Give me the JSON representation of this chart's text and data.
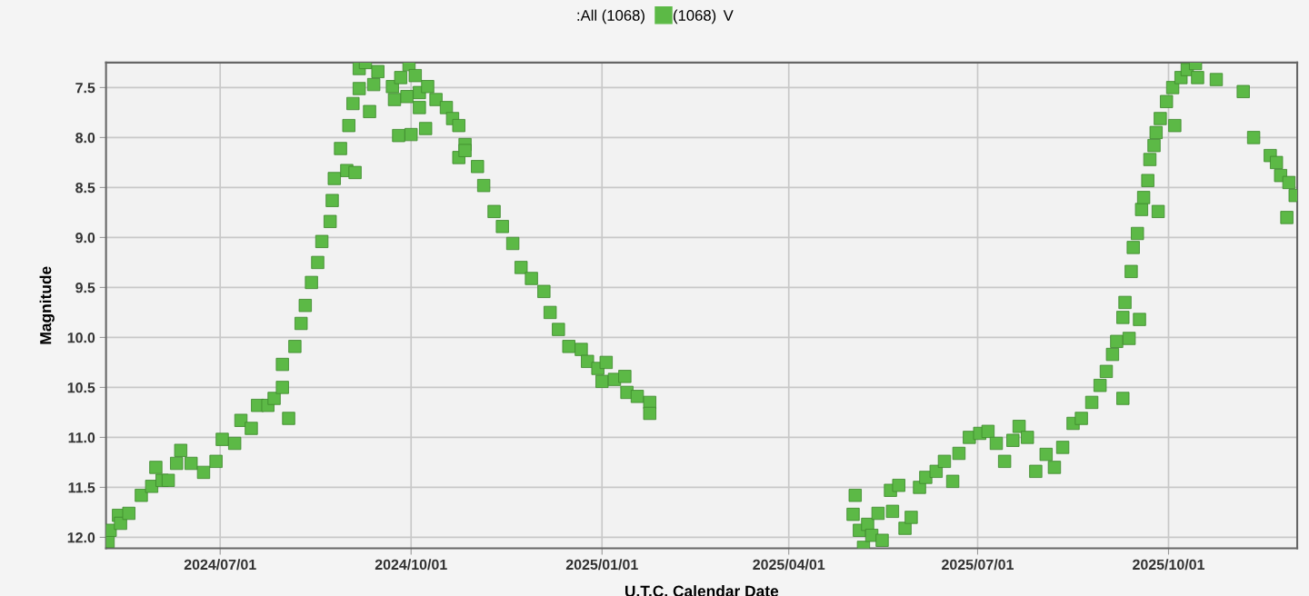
{
  "chart_data": {
    "type": "scatter",
    "xlabel": "U.T.C. Calendar Date",
    "ylabel": "Magnitude",
    "legend_title": ":All (1068)",
    "annotations": [
      "V"
    ],
    "legend": "top",
    "grid": true,
    "marker": "square",
    "xlim": [
      "2024-05-07",
      "2025-12-02"
    ],
    "xticks": [
      {
        "value": "2024-07-01",
        "label": "2024/07/01"
      },
      {
        "value": "2024-10-01",
        "label": "2024/10/01"
      },
      {
        "value": "2025-01-01",
        "label": "2025/01/01"
      },
      {
        "value": "2025-04-01",
        "label": "2025/04/01"
      },
      {
        "value": "2025-07-01",
        "label": "2025/07/01"
      },
      {
        "value": "2025-10-01",
        "label": "2025/10/01"
      }
    ],
    "ylim": [
      12.11,
      7.25
    ],
    "yticks": [
      {
        "value": 7.5,
        "label": "7.5"
      },
      {
        "value": 8.0,
        "label": "8.0"
      },
      {
        "value": 8.5,
        "label": "8.5"
      },
      {
        "value": 9.0,
        "label": "9.0"
      },
      {
        "value": 9.5,
        "label": "9.5"
      },
      {
        "value": 10.0,
        "label": "10.0"
      },
      {
        "value": 10.5,
        "label": "10.5"
      },
      {
        "value": 11.0,
        "label": "11.0"
      },
      {
        "value": 11.5,
        "label": "11.5"
      },
      {
        "value": 12.0,
        "label": "12.0"
      }
    ],
    "series": [
      {
        "name": "(1068)",
        "color": "#5cb946",
        "x": [
          "2024-05-08",
          "2024-05-09",
          "2024-05-13",
          "2024-05-14",
          "2024-05-18",
          "2024-05-24",
          "2024-05-29",
          "2024-05-31",
          "2024-06-03",
          "2024-06-06",
          "2024-06-10",
          "2024-06-12",
          "2024-06-17",
          "2024-06-23",
          "2024-06-29",
          "2024-07-02",
          "2024-07-08",
          "2024-07-11",
          "2024-07-16",
          "2024-07-19",
          "2024-07-24",
          "2024-07-27",
          "2024-07-31",
          "2024-08-03",
          "2024-07-31",
          "2024-08-06",
          "2024-08-09",
          "2024-08-11",
          "2024-08-14",
          "2024-08-17",
          "2024-08-19",
          "2024-08-23",
          "2024-08-24",
          "2024-08-25",
          "2024-08-28",
          "2024-08-31",
          "2024-09-04",
          "2024-09-01",
          "2024-09-03",
          "2024-09-06",
          "2024-09-06",
          "2024-09-09",
          "2024-09-11",
          "2024-09-13",
          "2024-09-15",
          "2024-09-22",
          "2024-09-23",
          "2024-09-25",
          "2024-09-26",
          "2024-09-29",
          "2024-09-30",
          "2024-10-01",
          "2024-10-03",
          "2024-10-05",
          "2024-10-05",
          "2024-10-08",
          "2024-10-09",
          "2024-10-13",
          "2024-10-18",
          "2024-10-21",
          "2024-10-24",
          "2024-10-24",
          "2024-10-27",
          "2024-10-27",
          "2024-11-02",
          "2024-11-05",
          "2024-11-10",
          "2024-11-14",
          "2024-11-19",
          "2024-11-23",
          "2024-11-28",
          "2024-12-04",
          "2024-12-07",
          "2024-12-11",
          "2024-12-16",
          "2024-12-22",
          "2024-12-25",
          "2024-12-30",
          "2025-01-01",
          "2025-01-03",
          "2025-01-07",
          "2025-01-12",
          "2025-01-13",
          "2025-01-18",
          "2025-01-24",
          "2025-01-24",
          "2025-05-03",
          "2025-05-02",
          "2025-05-05",
          "2025-05-07",
          "2025-05-09",
          "2025-05-11",
          "2025-05-14",
          "2025-05-16",
          "2025-05-20",
          "2025-05-21",
          "2025-05-24",
          "2025-05-27",
          "2025-05-30",
          "2025-06-03",
          "2025-06-06",
          "2025-06-11",
          "2025-06-15",
          "2025-06-19",
          "2025-06-22",
          "2025-06-27",
          "2025-07-02",
          "2025-07-06",
          "2025-07-10",
          "2025-07-14",
          "2025-07-18",
          "2025-07-21",
          "2025-07-25",
          "2025-07-29",
          "2025-08-03",
          "2025-08-07",
          "2025-08-11",
          "2025-08-16",
          "2025-08-20",
          "2025-08-25",
          "2025-08-29",
          "2025-09-01",
          "2025-09-04",
          "2025-09-06",
          "2025-09-09",
          "2025-09-09",
          "2025-09-12",
          "2025-09-10",
          "2025-09-13",
          "2025-09-14",
          "2025-09-16",
          "2025-09-17",
          "2025-09-18",
          "2025-09-19",
          "2025-09-21",
          "2025-09-22",
          "2025-09-24",
          "2025-09-25",
          "2025-09-26",
          "2025-09-27",
          "2025-09-30",
          "2025-10-03",
          "2025-10-04",
          "2025-10-07",
          "2025-10-10",
          "2025-10-14",
          "2025-10-15",
          "2025-10-24",
          "2025-11-06",
          "2025-11-11",
          "2025-11-19",
          "2025-11-22",
          "2025-11-24",
          "2025-11-28",
          "2025-11-27",
          "2025-12-01"
        ],
        "values": [
          12.04,
          11.93,
          11.78,
          11.86,
          11.76,
          11.58,
          11.49,
          11.3,
          11.43,
          11.43,
          11.26,
          11.13,
          11.26,
          11.35,
          11.24,
          11.02,
          11.06,
          10.83,
          10.91,
          10.68,
          10.68,
          10.61,
          10.5,
          10.81,
          10.27,
          10.09,
          9.86,
          9.68,
          9.45,
          9.25,
          9.04,
          8.84,
          8.63,
          8.41,
          8.11,
          8.33,
          8.35,
          7.88,
          7.66,
          7.51,
          7.31,
          7.25,
          7.74,
          7.47,
          7.34,
          7.49,
          7.62,
          7.98,
          7.4,
          7.59,
          7.27,
          7.97,
          7.38,
          7.55,
          7.7,
          7.91,
          7.49,
          7.62,
          7.7,
          7.81,
          7.88,
          8.2,
          8.07,
          8.13,
          8.29,
          8.48,
          8.74,
          8.89,
          9.06,
          9.3,
          9.41,
          9.54,
          9.75,
          9.92,
          10.09,
          10.12,
          10.24,
          10.31,
          10.44,
          10.25,
          10.42,
          10.39,
          10.55,
          10.59,
          10.65,
          10.76,
          11.58,
          11.77,
          11.93,
          12.1,
          11.87,
          11.98,
          11.76,
          12.03,
          11.53,
          11.74,
          11.48,
          11.91,
          11.8,
          11.5,
          11.4,
          11.34,
          11.24,
          11.44,
          11.16,
          11.0,
          10.96,
          10.94,
          11.06,
          11.24,
          11.03,
          10.89,
          11.0,
          11.34,
          11.17,
          11.3,
          11.1,
          10.86,
          10.81,
          10.65,
          10.48,
          10.34,
          10.17,
          10.04,
          9.8,
          10.61,
          10.01,
          9.65,
          9.34,
          9.1,
          8.96,
          9.82,
          8.72,
          8.6,
          8.43,
          8.22,
          8.08,
          7.95,
          8.74,
          7.81,
          7.64,
          7.5,
          7.88,
          7.4,
          7.32,
          7.26,
          7.4,
          7.42,
          7.54,
          8.0,
          8.18,
          8.25,
          8.38,
          8.45,
          8.8,
          8.58
        ]
      }
    ]
  }
}
